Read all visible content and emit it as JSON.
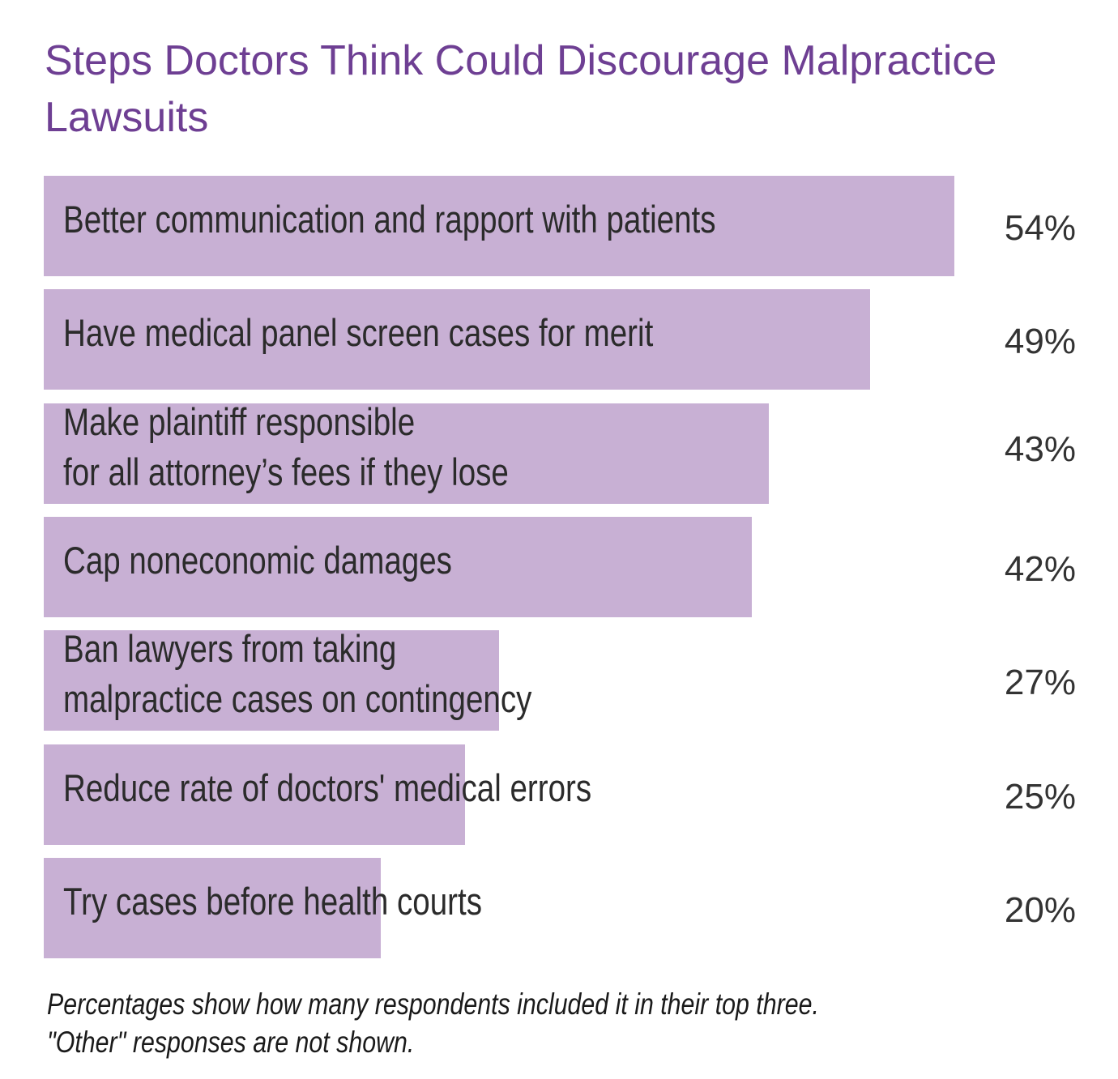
{
  "chart_data": {
    "type": "bar",
    "orientation": "horizontal",
    "title": "Steps Doctors Think Could Discourage Malpractice Lawsuits",
    "categories": [
      [
        "Better communication and rapport with patients"
      ],
      [
        "Have medical panel screen cases for merit"
      ],
      [
        "Make plaintiff responsible",
        "for all attorney’s fees if they lose"
      ],
      [
        "Cap noneconomic damages"
      ],
      [
        "Ban lawyers from taking",
        "malpractice cases on contingency"
      ],
      [
        "Reduce rate of doctors' medical errors"
      ],
      [
        "Try cases before health courts"
      ]
    ],
    "values": [
      54,
      49,
      43,
      42,
      27,
      25,
      20
    ],
    "value_labels": [
      "54%",
      "49%",
      "43%",
      "42%",
      "27%",
      "25%",
      "20%"
    ],
    "unit": "%",
    "bar_color": "#c8b0d4",
    "title_color": "#6e3f93",
    "grid": false
  },
  "footnote": [
    "Percentages show how many respondents included it in their top three.",
    "\"Other\" responses are not shown."
  ]
}
